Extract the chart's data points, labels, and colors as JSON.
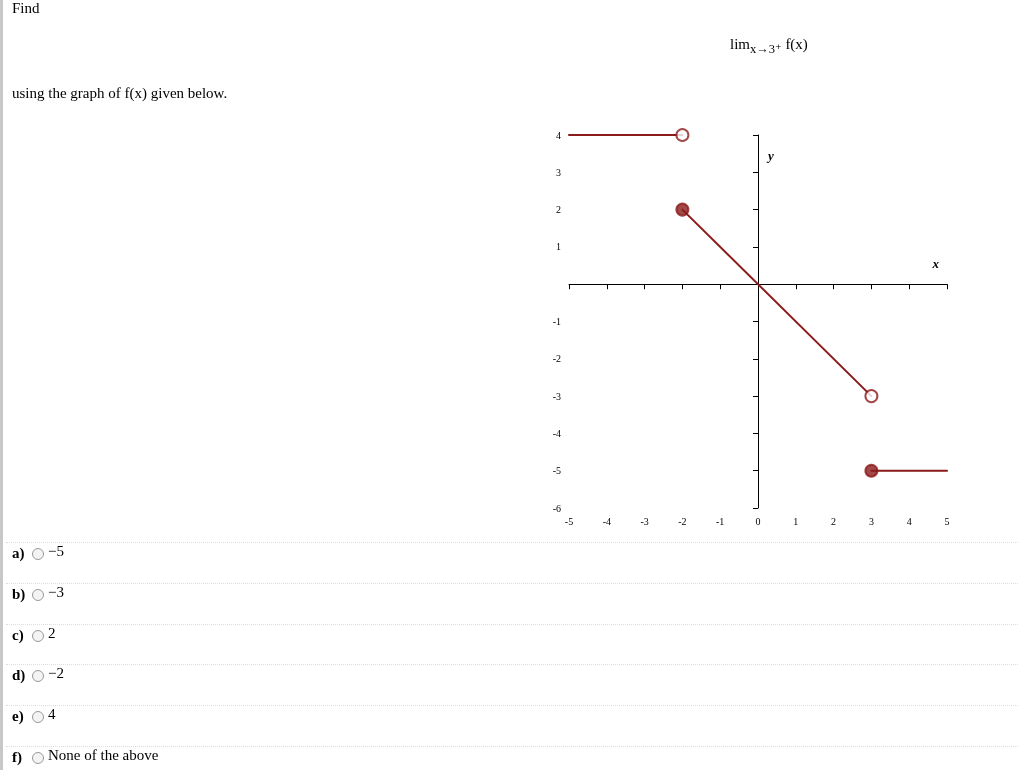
{
  "chart_data": {
    "type": "line",
    "title": "Find",
    "xlabel": "x",
    "ylabel": "y",
    "xlim": [
      -5,
      5
    ],
    "xticks": [
      -5,
      -4,
      -3,
      -2,
      -1,
      0,
      1,
      2,
      3,
      4,
      5
    ],
    "ylim": [
      -6,
      4
    ],
    "yticks": [
      -6,
      -5,
      -4,
      -3,
      -2,
      -1,
      1,
      2,
      3,
      4
    ],
    "marker": "none",
    "line_style": "solid",
    "series": [
      {
        "color": "#8b1a1a",
        "x": [
          -5,
          -2
        ],
        "values": [
          4,
          4
        ]
      },
      {
        "color": "#8b1a1a",
        "x": [
          -2,
          3
        ],
        "values": [
          2,
          -3
        ]
      },
      {
        "color": "#8b1a1a",
        "x": [
          3,
          5
        ],
        "values": [
          -5,
          -5
        ]
      },
      {
        "type": "scatter",
        "color": "#8b1a1a",
        "marker": "circle",
        "x": [
          -2,
          3
        ],
        "values": [
          2,
          -5
        ]
      },
      {
        "type": "scatter",
        "color": "#ffffff",
        "marker": "circle",
        "x": [
          -2,
          3
        ],
        "values": [
          4,
          -3
        ]
      }
    ],
    "annotations": [
      "lim$_{x→3⁺}$ f(x)",
      "using the graph of f(x) given below.",
      "a) −5",
      "b) −3",
      "c) 2",
      "d) −2",
      "e) 4",
      "f) None of the above"
    ]
  }
}
